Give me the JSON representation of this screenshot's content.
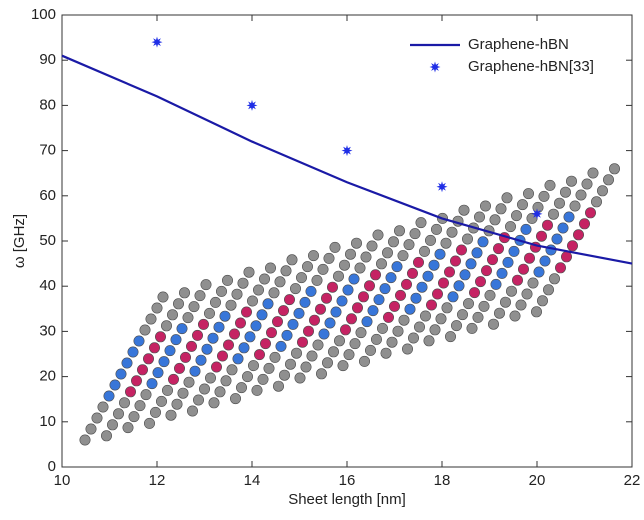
{
  "chart_data": {
    "type": "line",
    "xlabel": "Sheet length [nm]",
    "ylabel": "ω [GHz]",
    "xlim": [
      10,
      22
    ],
    "xticks": [
      10,
      12,
      14,
      16,
      18,
      20,
      22
    ],
    "ylim": [
      0,
      100
    ],
    "yticks": [
      0,
      10,
      20,
      30,
      40,
      50,
      60,
      70,
      80,
      90,
      100
    ],
    "legend": "upper right",
    "series": [
      {
        "name": "Graphene-hBN",
        "color": "#1a1aa6",
        "style": "line",
        "x": [
          10,
          12,
          14,
          16,
          18,
          20,
          22
        ],
        "values": [
          91,
          82,
          72,
          63,
          55,
          49,
          45
        ]
      },
      {
        "name": "Graphene-hBN[33]",
        "color": "#1f2ee6",
        "style": "marker",
        "x": [
          12,
          14,
          16,
          18,
          20
        ],
        "values": [
          94,
          80,
          70,
          62,
          56
        ]
      }
    ]
  }
}
